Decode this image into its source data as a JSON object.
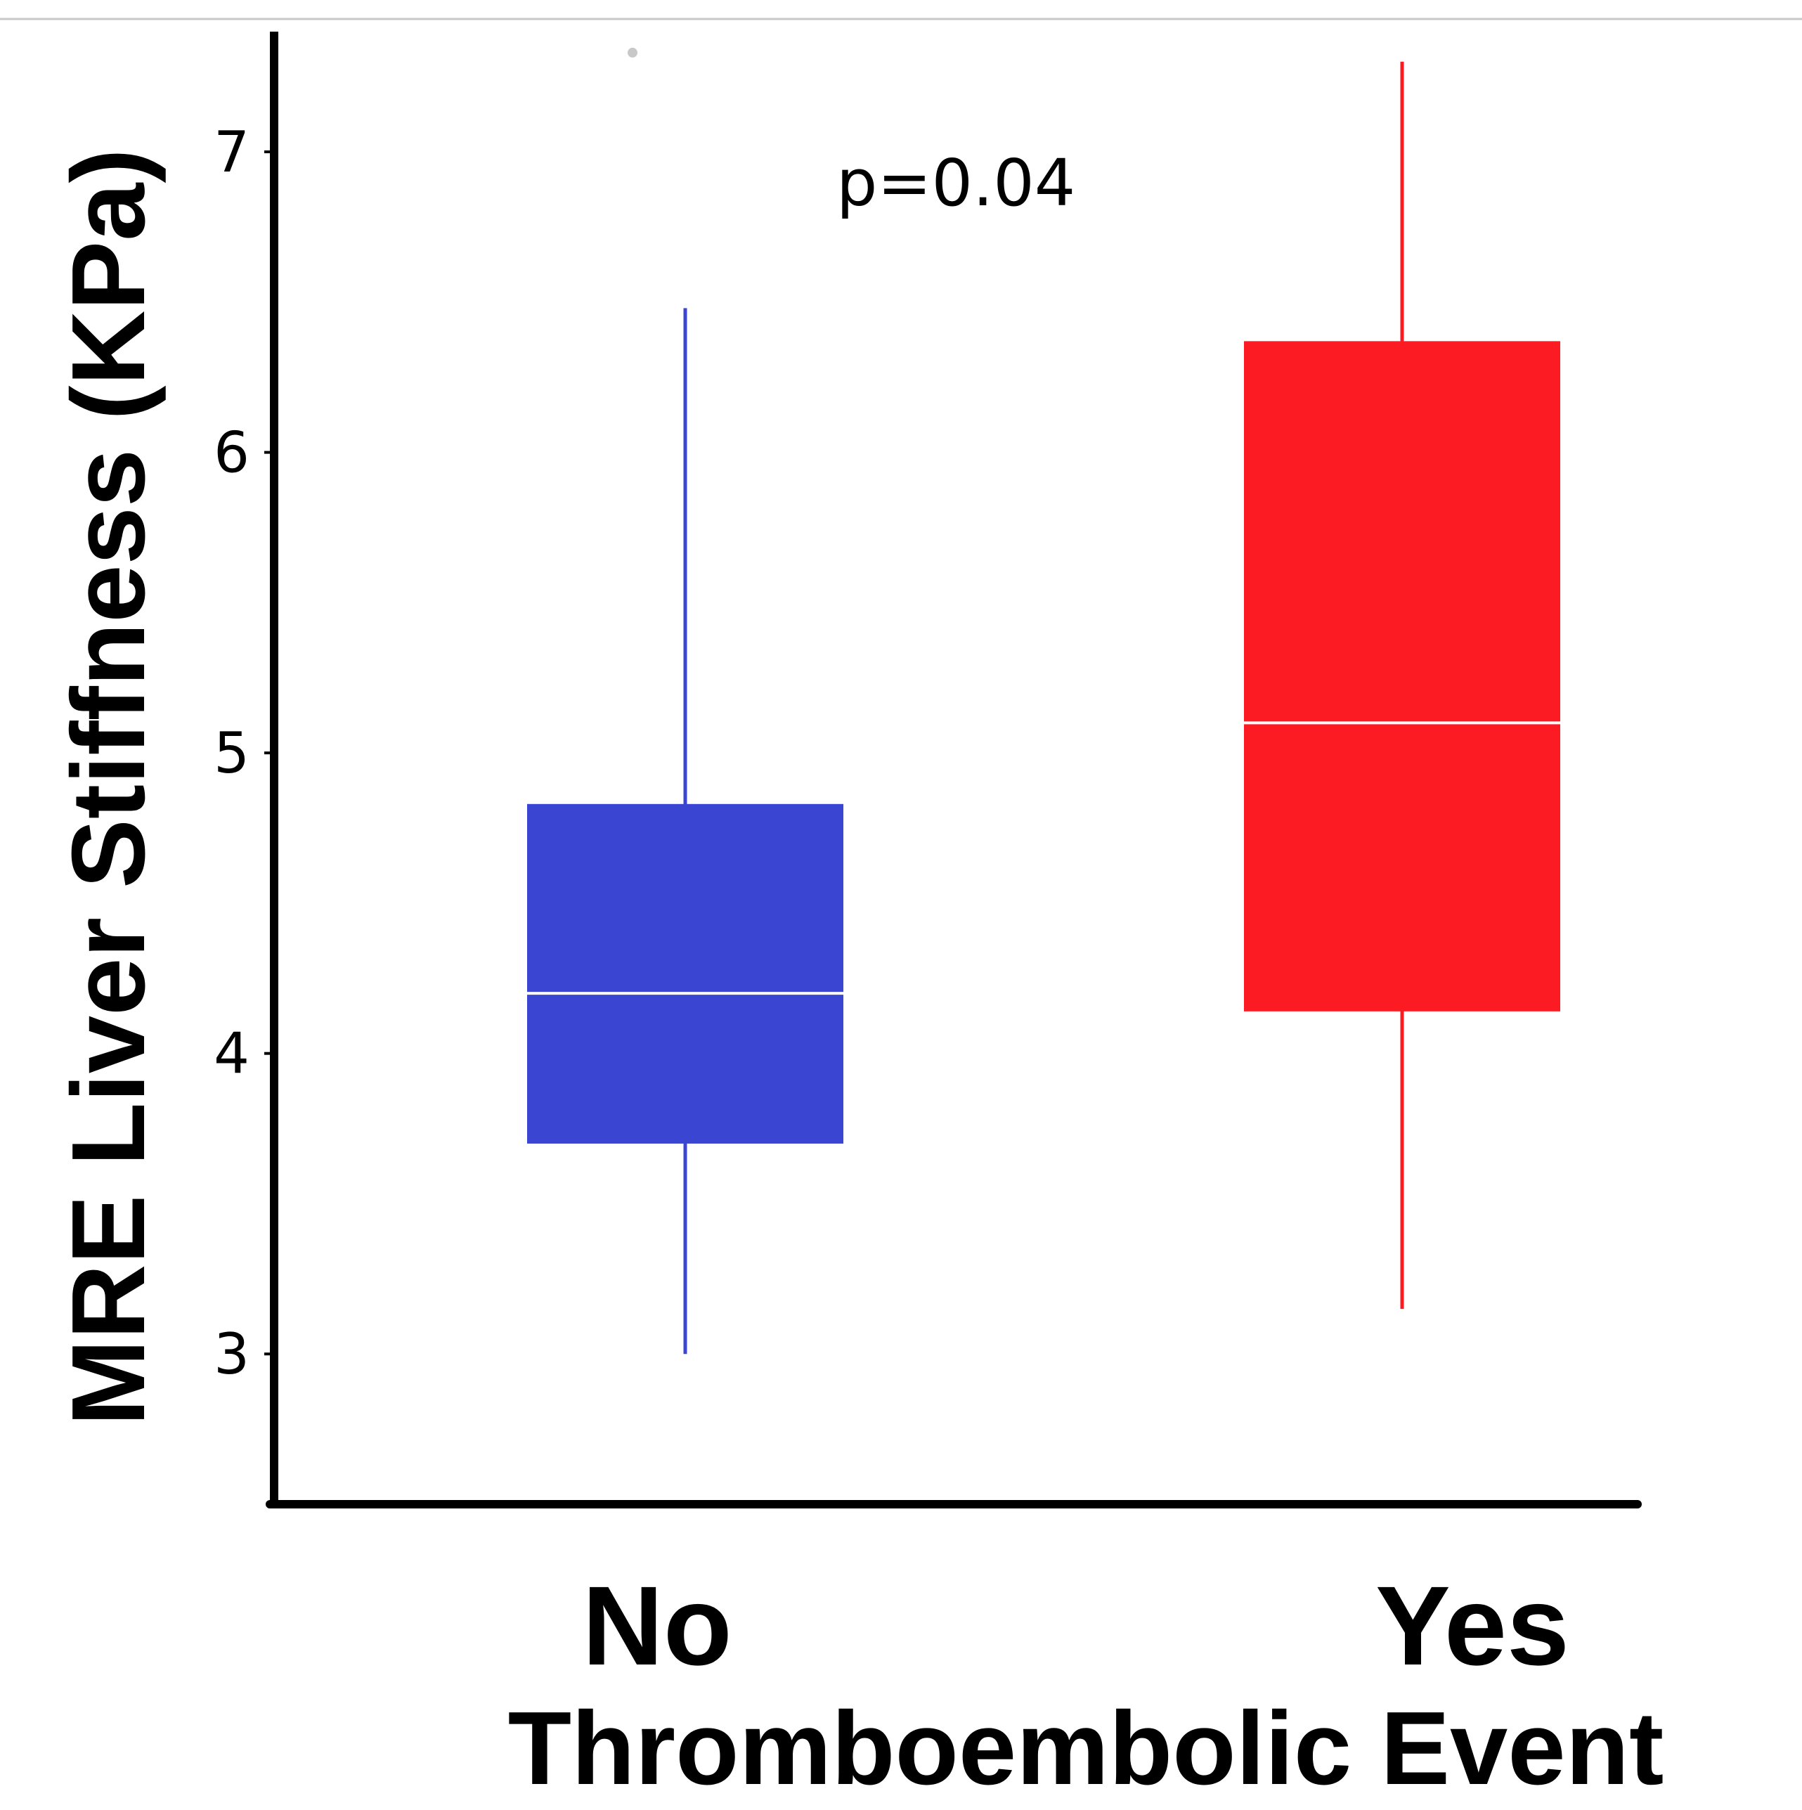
{
  "chart_data": {
    "type": "boxplot",
    "title": "",
    "xlabel": "Thromboembolic Event",
    "ylabel": "MRE Liver Stiffness (KPa)",
    "ylim": [
      2.5,
      7.4
    ],
    "yticks": [
      3,
      4,
      5,
      6,
      7
    ],
    "grid": false,
    "annotation": "p=0.04",
    "categories": [
      "No",
      "Yes"
    ],
    "series": [
      {
        "name": "No",
        "color": "#3a46d2",
        "whisker_low": 3.0,
        "q1": 3.7,
        "median": 4.2,
        "q3": 4.83,
        "whisker_high": 6.48,
        "outliers": [
          7.33
        ]
      },
      {
        "name": "Yes",
        "color": "#fd1b23",
        "whisker_low": 3.15,
        "q1": 4.14,
        "median": 5.1,
        "q3": 6.37,
        "whisker_high": 7.3,
        "outliers": []
      }
    ]
  }
}
